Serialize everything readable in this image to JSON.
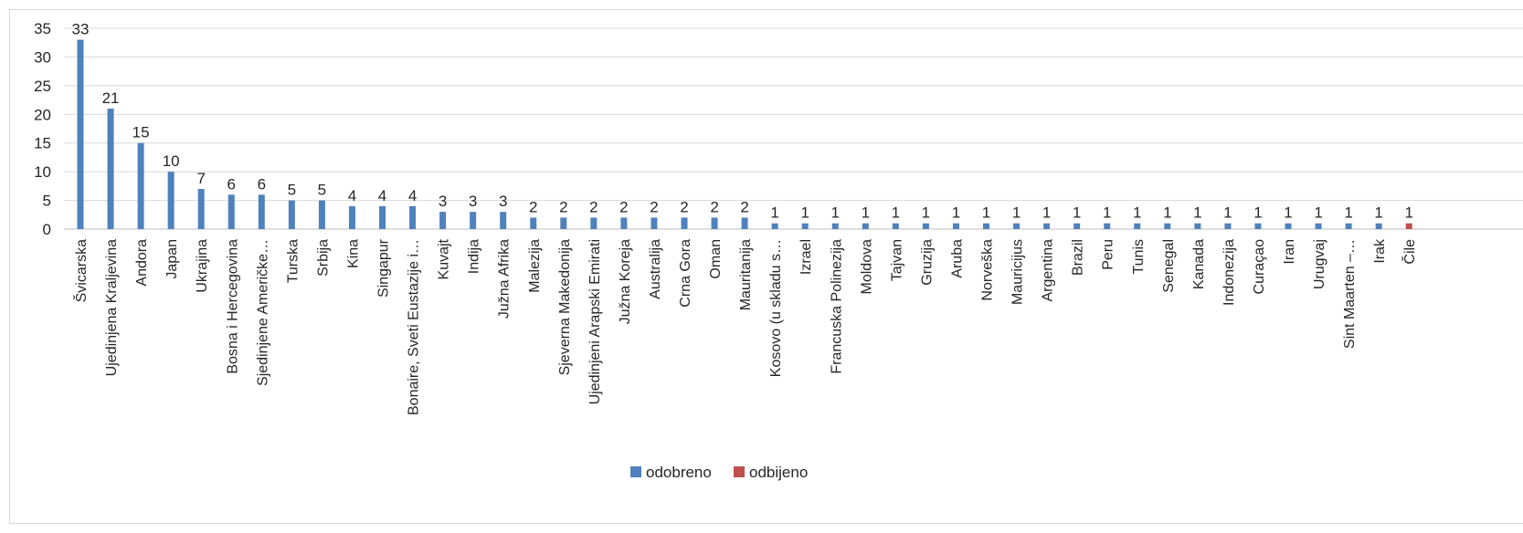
{
  "chart_data": {
    "type": "bar",
    "title": "",
    "xlabel": "",
    "ylabel": "",
    "ylim": [
      0,
      35
    ],
    "yticks": [
      0,
      5,
      10,
      15,
      20,
      25,
      30,
      35
    ],
    "grid": true,
    "legend_position": "bottom",
    "categories": [
      "Švicarska",
      "Ujedinjena Kraljevina",
      "Andora",
      "Japan",
      "Ukrajina",
      "Bosna i Hercegovina",
      "Sjedinjene Američke…",
      "Turska",
      "Srbija",
      "Kina",
      "Singapur",
      "Bonaire, Sveti Eustazije i…",
      "Kuvajt",
      "Indija",
      "Južna Afrika",
      "Malezija",
      "Sjeverna Makedonija",
      "Ujedinjeni Arapski Emirati",
      "Južna Koreja",
      "Australija",
      "Crna Gora",
      "Oman",
      "Mauritanija",
      "Kosovo (u skladu s…",
      "Izrael",
      "Francuska Polinezija",
      "Moldova",
      "Tajvan",
      "Gruzija",
      "Aruba",
      "Norveška",
      "Mauricijus",
      "Argentina",
      "Brazil",
      "Peru",
      "Tunis",
      "Senegal",
      "Kanada",
      "Indonezija",
      "Curaçao",
      "Iran",
      "Urugvaj",
      "Sint Maarten –…",
      "Irak",
      "Čile"
    ],
    "series": [
      {
        "name": "odobreno",
        "color": "#4f81bd",
        "values": [
          33,
          21,
          15,
          10,
          7,
          6,
          6,
          5,
          5,
          4,
          4,
          4,
          3,
          3,
          3,
          2,
          2,
          2,
          2,
          2,
          2,
          2,
          2,
          1,
          1,
          1,
          1,
          1,
          1,
          1,
          1,
          1,
          1,
          1,
          1,
          1,
          1,
          1,
          1,
          1,
          1,
          1,
          1,
          1,
          0
        ]
      },
      {
        "name": "odbijeno",
        "color": "#c0504d",
        "values": [
          0,
          0,
          0,
          0,
          0,
          0,
          0,
          0,
          0,
          0,
          0,
          0,
          0,
          0,
          0,
          0,
          0,
          0,
          0,
          0,
          0,
          0,
          0,
          0,
          0,
          0,
          0,
          0,
          0,
          0,
          0,
          0,
          0,
          0,
          0,
          0,
          0,
          0,
          0,
          0,
          0,
          0,
          0,
          0,
          1
        ]
      }
    ],
    "data_labels": [
      "33",
      "21",
      "15",
      "10",
      "7",
      "6",
      "6",
      "5",
      "5",
      "4",
      "4",
      "4",
      "3",
      "3",
      "3",
      "2",
      "2",
      "2",
      "2",
      "2",
      "2",
      "2",
      "2",
      "1",
      "1",
      "1",
      "1",
      "1",
      "1",
      "1",
      "1",
      "1",
      "1",
      "1",
      "1",
      "1",
      "1",
      "1",
      "1",
      "1",
      "1",
      "1",
      "1",
      "1",
      "1"
    ]
  }
}
